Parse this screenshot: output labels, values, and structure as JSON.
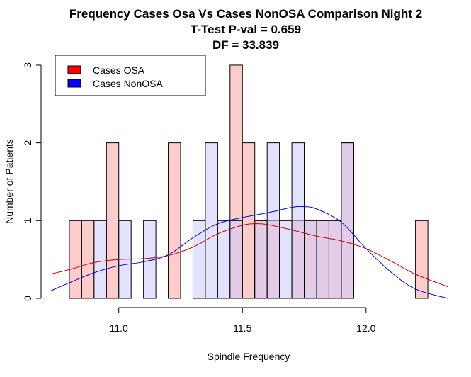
{
  "chart_data": {
    "type": "bar",
    "title": "Frequency Cases Osa Vs Cases NonOSA Comparison Night 2",
    "subtitle_lines": [
      "T-Test P-val = 0.659",
      "DF = 33.839"
    ],
    "xlabel": "Spindle Frequency",
    "ylabel": "Number of Patients",
    "xlim": [
      10.72,
      12.33
    ],
    "ylim": [
      0,
      3.2
    ],
    "x_ticks": [
      "11.0",
      "11.5",
      "12.0"
    ],
    "x_tick_values": [
      11.0,
      11.5,
      12.0
    ],
    "y_ticks": [
      "0",
      "1",
      "2",
      "3"
    ],
    "y_tick_values": [
      0,
      1,
      2,
      3
    ],
    "bin_width": 0.05,
    "legend_position": "top-left",
    "legend": [
      {
        "name": "Cases OSA",
        "color": "#ff0000"
      },
      {
        "name": "Cases NonOSA",
        "color": "#0000ff"
      }
    ],
    "series": [
      {
        "name": "Cases OSA",
        "fill": "#ffcccc",
        "curve_color": "#cc0000",
        "bins": [
          {
            "start": 10.8,
            "count": 1
          },
          {
            "start": 10.85,
            "count": 1
          },
          {
            "start": 10.95,
            "count": 2
          },
          {
            "start": 11.2,
            "count": 2
          },
          {
            "start": 11.45,
            "count": 3
          },
          {
            "start": 11.5,
            "count": 2
          },
          {
            "start": 11.55,
            "count": 1
          },
          {
            "start": 11.6,
            "count": 1
          },
          {
            "start": 11.7,
            "count": 1
          },
          {
            "start": 11.75,
            "count": 1
          },
          {
            "start": 11.8,
            "count": 1
          },
          {
            "start": 11.85,
            "count": 1
          },
          {
            "start": 11.9,
            "count": 2
          },
          {
            "start": 12.2,
            "count": 1
          }
        ],
        "density_curve": [
          [
            10.72,
            0.31
          ],
          [
            10.8,
            0.37
          ],
          [
            10.9,
            0.46
          ],
          [
            11.0,
            0.5
          ],
          [
            11.1,
            0.51
          ],
          [
            11.2,
            0.55
          ],
          [
            11.3,
            0.66
          ],
          [
            11.4,
            0.83
          ],
          [
            11.5,
            0.94
          ],
          [
            11.55,
            0.96
          ],
          [
            11.6,
            0.95
          ],
          [
            11.7,
            0.88
          ],
          [
            11.8,
            0.8
          ],
          [
            11.9,
            0.74
          ],
          [
            12.0,
            0.64
          ],
          [
            12.1,
            0.48
          ],
          [
            12.2,
            0.31
          ],
          [
            12.33,
            0.15
          ]
        ]
      },
      {
        "name": "Cases NonOSA",
        "fill": "#ccccff",
        "curve_color": "#0000cc",
        "bins": [
          {
            "start": 10.9,
            "count": 1
          },
          {
            "start": 11.0,
            "count": 1
          },
          {
            "start": 11.1,
            "count": 1
          },
          {
            "start": 11.3,
            "count": 1
          },
          {
            "start": 11.35,
            "count": 2
          },
          {
            "start": 11.4,
            "count": 1
          },
          {
            "start": 11.45,
            "count": 1
          },
          {
            "start": 11.55,
            "count": 1
          },
          {
            "start": 11.6,
            "count": 2
          },
          {
            "start": 11.65,
            "count": 1
          },
          {
            "start": 11.7,
            "count": 2
          },
          {
            "start": 11.75,
            "count": 1
          },
          {
            "start": 11.8,
            "count": 1
          },
          {
            "start": 11.85,
            "count": 1
          },
          {
            "start": 11.9,
            "count": 2
          }
        ],
        "density_curve": [
          [
            10.72,
            0.09
          ],
          [
            10.8,
            0.2
          ],
          [
            10.9,
            0.33
          ],
          [
            11.0,
            0.42
          ],
          [
            11.1,
            0.47
          ],
          [
            11.2,
            0.56
          ],
          [
            11.3,
            0.78
          ],
          [
            11.4,
            0.96
          ],
          [
            11.5,
            1.04
          ],
          [
            11.6,
            1.1
          ],
          [
            11.7,
            1.17
          ],
          [
            11.75,
            1.18
          ],
          [
            11.8,
            1.15
          ],
          [
            11.9,
            0.98
          ],
          [
            12.0,
            0.64
          ],
          [
            12.1,
            0.34
          ],
          [
            12.2,
            0.12
          ],
          [
            12.33,
            0.0
          ]
        ]
      }
    ]
  }
}
